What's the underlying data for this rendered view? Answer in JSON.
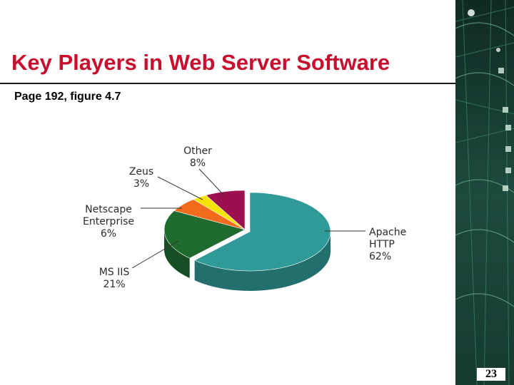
{
  "slide": {
    "title": "Key Players in Web Server Software",
    "subtitle": "Page 192, figure 4.7",
    "page_number": "23"
  },
  "chart_data": {
    "type": "pie",
    "title": "",
    "slices": [
      {
        "label_lines": [
          "Apache",
          "HTTP"
        ],
        "pct_text": "62%",
        "value": 62,
        "color": "#2f9a97"
      },
      {
        "label_lines": [
          "MS IIS"
        ],
        "pct_text": "21%",
        "value": 21,
        "color": "#1f6b2f"
      },
      {
        "label_lines": [
          "Netscape",
          "Enterprise"
        ],
        "pct_text": "6%",
        "value": 6,
        "color": "#f26a1b"
      },
      {
        "label_lines": [
          "Zeus"
        ],
        "pct_text": "3%",
        "value": 3,
        "color": "#f5e400"
      },
      {
        "label_lines": [
          "Other"
        ],
        "pct_text": "8%",
        "value": 8,
        "color": "#9b1150"
      }
    ],
    "legend": "none",
    "style": "3d-exploded-pie"
  }
}
